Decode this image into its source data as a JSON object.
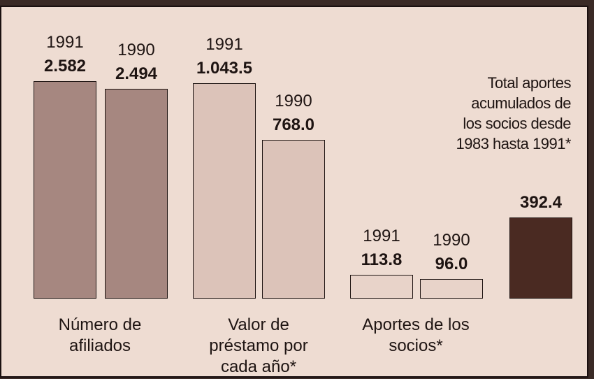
{
  "chart_data": [
    {
      "type": "bar",
      "categories": [
        "Número de afiliados"
      ],
      "series": [
        {
          "name": "1991",
          "color": "#a68780",
          "values": [
            2582
          ],
          "value_labels": [
            "2.582"
          ]
        },
        {
          "name": "1990",
          "color": "#a68780",
          "values": [
            2494
          ],
          "value_labels": [
            "2.494"
          ]
        }
      ],
      "ylim": [
        0,
        2700
      ]
    },
    {
      "type": "bar",
      "categories": [
        "Valor de préstamo por cada año*"
      ],
      "series": [
        {
          "name": "1991",
          "color": "#dcc3b9",
          "values": [
            1043.5
          ],
          "value_labels": [
            "1.043.5"
          ]
        },
        {
          "name": "1990",
          "color": "#dcc3b9",
          "values": [
            768.0
          ],
          "value_labels": [
            "768.0"
          ]
        }
      ],
      "ylim": [
        0,
        1100
      ]
    },
    {
      "type": "bar",
      "categories": [
        "Aportes de los socios*"
      ],
      "series": [
        {
          "name": "1991",
          "color": "#e8d3c9",
          "values": [
            113.8
          ],
          "value_labels": [
            "113.8"
          ]
        },
        {
          "name": "1990",
          "color": "#e8d3c9",
          "values": [
            96.0
          ],
          "value_labels": [
            "96.0"
          ]
        }
      ],
      "ylim": [
        0,
        1100
      ]
    },
    {
      "type": "bar",
      "annotation": "Total aportes acumulados de los socios desde 1983 hasta 1991*",
      "categories": [
        null
      ],
      "color": "#4a2a22",
      "values": [
        392.4
      ],
      "value_labels": [
        "392.4"
      ],
      "ylim": [
        0,
        1100
      ]
    }
  ]
}
